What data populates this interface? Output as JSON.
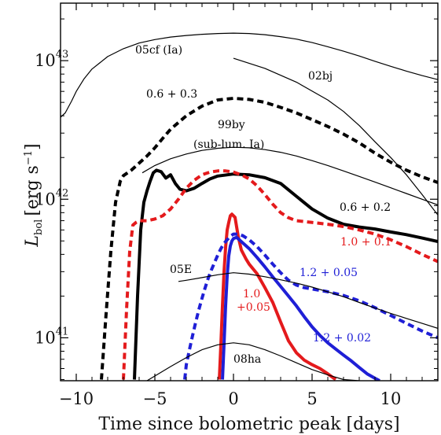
{
  "chart_data": {
    "type": "line",
    "xlabel": "Time since bolometric peak [days]",
    "ylabel": {
      "base": "L",
      "sub": "bol",
      "unit": "[erg s",
      "unit_exp": "−1",
      "unit_close": "]"
    },
    "xlim": [
      -11,
      13
    ],
    "ylim": [
      4.9e+40,
      2.6e+43
    ],
    "yscale": "log",
    "xticks": [
      -10,
      -5,
      0,
      5,
      10
    ],
    "xtick_labels": [
      "−10",
      "−5",
      "0",
      "5",
      "10"
    ],
    "yticks": [
      {
        "value": 1e+41,
        "base": "10",
        "exp": "41"
      },
      {
        "value": 1e+42,
        "base": "10",
        "exp": "42"
      },
      {
        "value": 1e+43,
        "base": "10",
        "exp": "43"
      }
    ],
    "series": [
      {
        "label": "05cf (Ia)",
        "color": "#000000",
        "style": "solid",
        "weight": "thin",
        "x": [
          -11,
          -10.7,
          -10.3,
          -10,
          -9.5,
          -9,
          -8,
          -7,
          -6,
          -5,
          -4,
          -3,
          -2,
          -1,
          0,
          1,
          2,
          3,
          4,
          5,
          6,
          7,
          8,
          9,
          10,
          11,
          12,
          13
        ],
        "y": [
          3.9e+42,
          4.2e+42,
          5.1e+42,
          6e+42,
          7.4e+42,
          8.7e+42,
          1.07e+43,
          1.22e+43,
          1.34e+43,
          1.42e+43,
          1.48e+43,
          1.52e+43,
          1.55e+43,
          1.57e+43,
          1.58e+43,
          1.57e+43,
          1.54e+43,
          1.49e+43,
          1.43e+43,
          1.35e+43,
          1.26e+43,
          1.17e+43,
          1.08e+43,
          9.9e+42,
          9.1e+42,
          8.4e+42,
          7.8e+42,
          7.3e+42
        ]
      },
      {
        "label": "02bj",
        "color": "#000000",
        "style": "solid",
        "weight": "thin",
        "x": [
          0,
          2,
          4,
          6,
          7,
          8,
          9,
          10,
          11,
          12,
          13
        ],
        "y": [
          1.04e+43,
          8.8e+42,
          7e+42,
          5.2e+42,
          4.3e+42,
          3.4e+42,
          2.6e+42,
          2e+42,
          1.5e+42,
          1.08e+42,
          7.7e+41
        ]
      },
      {
        "label": "0.6 + 0.3",
        "color": "#000000",
        "style": "dashed",
        "weight": "thick",
        "x": [
          -8.4,
          -8.1,
          -7.8,
          -7.5,
          -7.2,
          -7,
          -6.5,
          -6,
          -5.5,
          -5,
          -4.5,
          -4,
          -3,
          -2,
          -1,
          0,
          1,
          2,
          3,
          4,
          5,
          6,
          7,
          8,
          9,
          10,
          11,
          12,
          13
        ],
        "y": [
          5e+40,
          1.5e+41,
          4.2e+41,
          9.5e+41,
          1.35e+42,
          1.48e+42,
          1.62e+42,
          1.82e+42,
          2.05e+42,
          2.35e+42,
          2.75e+42,
          3.2e+42,
          4e+42,
          4.7e+42,
          5.2e+42,
          5.35e+42,
          5.25e+42,
          5e+42,
          4.6e+42,
          4.2e+42,
          3.75e+42,
          3.35e+42,
          2.95e+42,
          2.55e+42,
          2.15e+42,
          1.85e+42,
          1.62e+42,
          1.45e+42,
          1.32e+42
        ]
      },
      {
        "label": "99by",
        "label2": "(sub-lum. Ia)",
        "color": "#000000",
        "style": "solid",
        "weight": "thin",
        "x": [
          -5.8,
          -5,
          -4,
          -3,
          -2,
          -1,
          0,
          1,
          2,
          3,
          4,
          5,
          6,
          7,
          8,
          9,
          10,
          11,
          12,
          13
        ],
        "y": [
          1.55e+42,
          1.75e+42,
          1.96e+42,
          2.12e+42,
          2.25e+42,
          2.33e+42,
          2.37e+42,
          2.35e+42,
          2.28e+42,
          2.18e+42,
          2.05e+42,
          1.9e+42,
          1.75e+42,
          1.6e+42,
          1.46e+42,
          1.33e+42,
          1.21e+42,
          1.1e+42,
          1e+42,
          9.1e+41
        ]
      },
      {
        "label": "0.6 + 0.2",
        "color": "#000000",
        "style": "solid",
        "weight": "thick",
        "x": [
          -6.3,
          -6.1,
          -5.9,
          -5.7,
          -5.5,
          -5.3,
          -5.1,
          -4.9,
          -4.6,
          -4.3,
          -4,
          -3.7,
          -3.4,
          -3,
          -2.5,
          -2,
          -1.5,
          -1,
          0,
          1,
          2,
          3,
          4,
          5,
          6,
          7,
          8,
          9,
          10,
          11,
          12,
          13
        ],
        "y": [
          5e+40,
          2e+41,
          6e+41,
          9.5e+41,
          1.15e+42,
          1.35e+42,
          1.55e+42,
          1.62e+42,
          1.58e+42,
          1.42e+42,
          1.5e+42,
          1.3e+42,
          1.18e+42,
          1.15e+42,
          1.2e+42,
          1.3e+42,
          1.4e+42,
          1.47e+42,
          1.52e+42,
          1.5e+42,
          1.43e+42,
          1.3e+42,
          1.05e+42,
          8.5e+41,
          7.3e+41,
          6.6e+41,
          6.3e+41,
          6.1e+41,
          5.8e+41,
          5.55e+41,
          5.25e+41,
          4.95e+41
        ]
      },
      {
        "label": "1.0 + 0.1",
        "color": "#e41a1c",
        "style": "dashed",
        "weight": "thick",
        "x": [
          -7.0,
          -6.8,
          -6.6,
          -6.4,
          -6.2,
          -6,
          -5.5,
          -5,
          -4.5,
          -4,
          -3.5,
          -3,
          -2.5,
          -2,
          -1.5,
          -1,
          -0.5,
          0,
          0.5,
          1,
          1.5,
          2,
          2.5,
          3,
          3.5,
          4,
          5,
          6,
          7,
          8,
          9,
          10,
          11,
          12,
          13
        ],
        "y": [
          5e+40,
          1.6e+41,
          4.2e+41,
          6.5e+41,
          6.8e+41,
          7e+41,
          7e+41,
          7.2e+41,
          7.6e+41,
          8.5e+41,
          1e+42,
          1.2e+42,
          1.37e+42,
          1.5e+42,
          1.57e+42,
          1.6e+42,
          1.6e+42,
          1.57e+42,
          1.5e+42,
          1.4e+42,
          1.25e+42,
          1.08e+42,
          9.2e+41,
          8e+41,
          7.35e+41,
          7e+41,
          6.8e+41,
          6.6e+41,
          6.35e+41,
          6e+41,
          5.6e+41,
          5.1e+41,
          4.55e+41,
          4e+41,
          3.55e+41
        ]
      },
      {
        "label": "1.0",
        "label2": "+0.05",
        "color": "#e41a1c",
        "style": "solid",
        "weight": "thick",
        "x": [
          -0.9,
          -0.8,
          -0.7,
          -0.6,
          -0.5,
          -0.4,
          -0.3,
          -0.2,
          -0.1,
          0.1,
          0.3,
          0.5,
          0.8,
          1,
          1.5,
          2,
          2.5,
          3,
          3.5,
          4,
          4.5,
          5,
          5.5,
          6,
          6.5
        ],
        "y": [
          5e+40,
          9e+40,
          1.7e+41,
          3e+41,
          4.5e+41,
          6e+41,
          6.8e+41,
          7.6e+41,
          7.8e+41,
          7.4e+41,
          5.4e+41,
          4.3e+41,
          3.7e+41,
          3.4e+41,
          2.9e+41,
          2.3e+41,
          1.8e+41,
          1.3e+41,
          9.5e+40,
          7.8e+40,
          6.9e+40,
          6.4e+40,
          6e+40,
          5.5e+40,
          5e+40
        ]
      },
      {
        "label": "1.2 + 0.05",
        "color": "#1f1fd6",
        "style": "dashed",
        "weight": "thick",
        "x": [
          -3.1,
          -3,
          -2.8,
          -2.6,
          -2.4,
          -2.2,
          -2,
          -1.8,
          -1.6,
          -1.4,
          -1.2,
          -1,
          -0.8,
          -0.6,
          -0.4,
          -0.2,
          0,
          0.3,
          0.6,
          1,
          1.5,
          2,
          2.5,
          3,
          3.5,
          4,
          4.5,
          5,
          6,
          7,
          8,
          9,
          10,
          11,
          12,
          13
        ],
        "y": [
          5e+40,
          6.4e+40,
          8.2e+40,
          1.04e+41,
          1.3e+41,
          1.6e+41,
          1.93e+41,
          2.3e+41,
          2.7e+41,
          3.1e+41,
          3.5e+41,
          3.95e+41,
          4.4e+41,
          4.8e+41,
          5.1e+41,
          5.4e+41,
          5.6e+41,
          5.6e+41,
          5.45e+41,
          5.1e+41,
          4.55e+41,
          3.95e+41,
          3.4e+41,
          2.95e+41,
          2.6e+41,
          2.4e+41,
          2.3e+41,
          2.25e+41,
          2.15e+41,
          2.02e+41,
          1.85e+41,
          1.65e+41,
          1.45e+41,
          1.27e+41,
          1.12e+41,
          1e+41
        ]
      },
      {
        "label": "1.2 + 0.02",
        "color": "#1f1fd6",
        "style": "solid",
        "weight": "thick",
        "x": [
          -0.7,
          -0.6,
          -0.5,
          -0.4,
          -0.3,
          -0.2,
          -0.1,
          0,
          0.2,
          0.5,
          1,
          1.5,
          2,
          2.5,
          3,
          3.5,
          4,
          4.5,
          5,
          5.5,
          6,
          6.5,
          7,
          7.5,
          8,
          8.5,
          9,
          9.3
        ],
        "y": [
          5e+40,
          9e+40,
          1.7e+41,
          2.8e+41,
          3.9e+41,
          4.6e+41,
          5e+41,
          5.2e+41,
          5.3e+41,
          4.95e+41,
          4.4e+41,
          3.8e+41,
          3.25e+41,
          2.75e+41,
          2.35e+41,
          2e+41,
          1.7e+41,
          1.42e+41,
          1.2e+41,
          1.04e+41,
          9.2e+40,
          8.3e+40,
          7.5e+40,
          6.8e+40,
          6.1e+40,
          5.5e+40,
          5.1e+40,
          4.9e+40
        ]
      },
      {
        "label": "05E",
        "color": "#000000",
        "style": "solid",
        "weight": "thin",
        "x": [
          -3.5,
          -3,
          -2,
          -1,
          0,
          1,
          2,
          3,
          4,
          5,
          6,
          7,
          8,
          9,
          10,
          11,
          12,
          13
        ],
        "y": [
          2.55e+41,
          2.6e+41,
          2.72e+41,
          2.85e+41,
          2.95e+41,
          2.88e+41,
          2.76e+41,
          2.62e+41,
          2.48e+41,
          2.32e+41,
          2.15e+41,
          1.98e+41,
          1.8e+41,
          1.64e+41,
          1.5e+41,
          1.38e+41,
          1.27e+41,
          1.17e+41
        ]
      },
      {
        "label": "08ha",
        "color": "#000000",
        "style": "solid",
        "weight": "thin",
        "x": [
          -5.5,
          -5,
          -4,
          -3,
          -2,
          -1,
          0,
          1,
          2,
          3,
          4,
          5,
          6,
          7,
          8
        ],
        "y": [
          4.9e+40,
          5.3e+40,
          6.2e+40,
          7.2e+40,
          8.2e+40,
          8.9e+40,
          9.2e+40,
          8.9e+40,
          8.2e+40,
          7.4e+40,
          6.6e+40,
          5.9e+40,
          5.4e+40,
          5e+40,
          4.9e+40
        ]
      }
    ]
  }
}
